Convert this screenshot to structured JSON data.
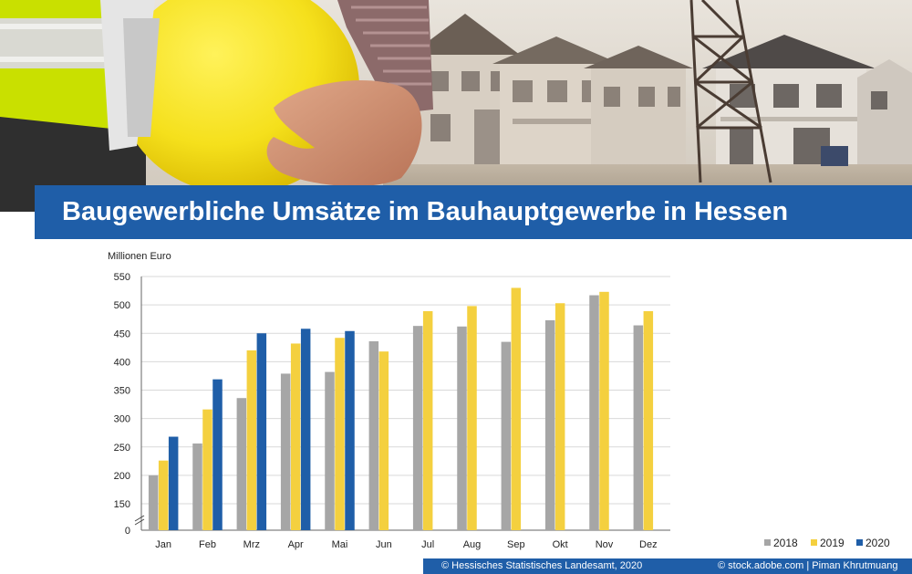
{
  "title": "Baugewerbliche Umsätze im Bauhauptgewerbe in Hessen",
  "chart_data": {
    "type": "bar",
    "ylabel": "Millionen Euro",
    "ylim": [
      0,
      550
    ],
    "y_axis_break": true,
    "yticks": [
      0,
      150,
      200,
      250,
      300,
      350,
      400,
      450,
      500,
      550
    ],
    "grid": "horizontal",
    "legend_position": "bottom-right",
    "categories": [
      "Jan",
      "Feb",
      "Mrz",
      "Apr",
      "Mai",
      "Jun",
      "Jul",
      "Aug",
      "Sep",
      "Okt",
      "Nov",
      "Dez"
    ],
    "series": [
      {
        "name": "2018",
        "color": "#a6a6a6",
        "values": [
          200,
          256,
          336,
          379,
          382,
          436,
          463,
          462,
          435,
          473,
          517,
          464
        ]
      },
      {
        "name": "2019",
        "color": "#f4d03f",
        "values": [
          226,
          316,
          420,
          432,
          442,
          418,
          489,
          498,
          530,
          503,
          523,
          489
        ]
      },
      {
        "name": "2020",
        "color": "#1f5ea8",
        "values": [
          268,
          369,
          450,
          458,
          454,
          null,
          null,
          null,
          null,
          null,
          null,
          null
        ]
      }
    ]
  },
  "footer": {
    "source": "© Hessisches Statistisches Landesamt, 2020",
    "photo_credit": "© stock.adobe.com | Piman Khrutmuang"
  },
  "hero_image": {
    "icons": [
      "yellow-hard-hat-icon",
      "high-visibility-vest-icon",
      "house-under-construction-icon",
      "scaffolding-tower-icon"
    ]
  }
}
